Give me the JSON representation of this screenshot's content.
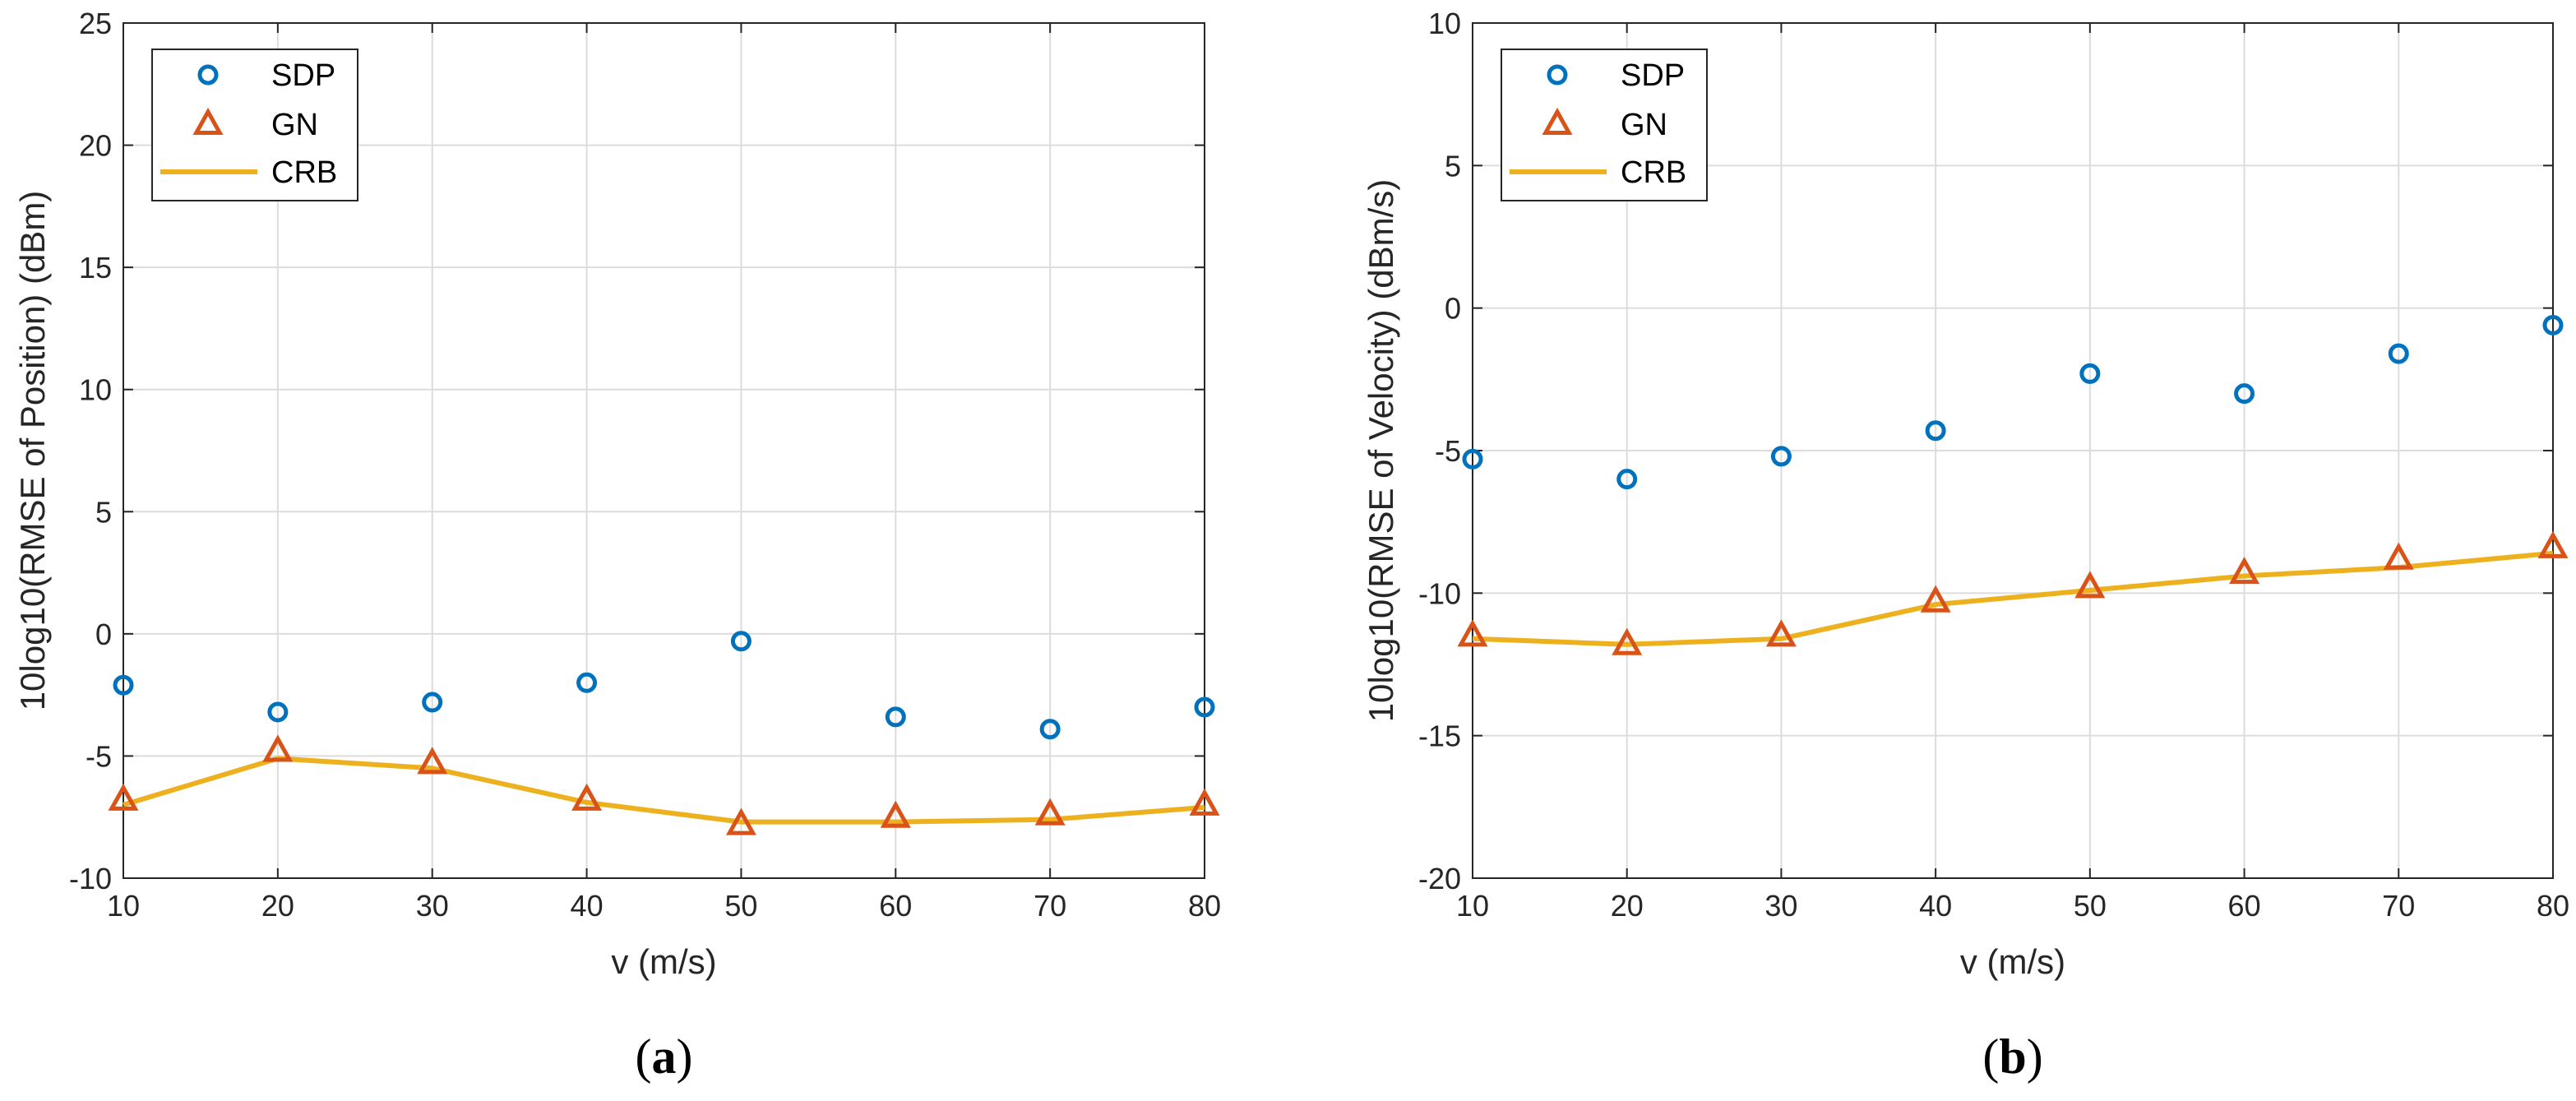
{
  "colors": {
    "sdp": "#0072BD",
    "gn": "#D95319",
    "crb": "#EDB120",
    "grid": "#dcdcdc",
    "axis": "#262626"
  },
  "chart_data": [
    {
      "type": "line",
      "panel": {
        "open": "(",
        "letter": "a",
        "close": ")"
      },
      "xlabel": "v (m/s)",
      "ylabel": "10log10(RMSE of Position) (dBm)",
      "xlim": [
        10,
        80
      ],
      "ylim": [
        -10,
        25
      ],
      "xticks": [
        10,
        20,
        30,
        40,
        50,
        60,
        70,
        80
      ],
      "yticks": [
        -10,
        -5,
        0,
        5,
        10,
        15,
        20,
        25
      ],
      "grid": true,
      "legend_position": "top-left",
      "x": [
        10,
        20,
        30,
        40,
        50,
        60,
        70,
        80
      ],
      "series": [
        {
          "name": "SDP",
          "style": "circle-markers",
          "values": [
            -2.1,
            -3.2,
            -2.8,
            -2.0,
            -0.3,
            -3.4,
            -3.9,
            -3.0
          ]
        },
        {
          "name": "GN",
          "style": "triangle-markers",
          "values": [
            -6.8,
            -4.8,
            -5.3,
            -6.8,
            -7.8,
            -7.5,
            -7.4,
            -7.0
          ]
        },
        {
          "name": "CRB",
          "style": "line",
          "values": [
            -7.0,
            -5.1,
            -5.5,
            -6.9,
            -7.7,
            -7.7,
            -7.6,
            -7.1
          ]
        }
      ]
    },
    {
      "type": "line",
      "panel": {
        "open": "(",
        "letter": "b",
        "close": ")"
      },
      "xlabel": "v (m/s)",
      "ylabel": "10log10(RMSE of Velocity) (dBm/s)",
      "xlim": [
        10,
        80
      ],
      "ylim": [
        -20,
        10
      ],
      "xticks": [
        10,
        20,
        30,
        40,
        50,
        60,
        70,
        80
      ],
      "yticks": [
        -20,
        -15,
        -10,
        -5,
        0,
        5,
        10
      ],
      "grid": true,
      "legend_position": "top-left",
      "x": [
        10,
        20,
        30,
        40,
        50,
        60,
        70,
        80
      ],
      "series": [
        {
          "name": "SDP",
          "style": "circle-markers",
          "values": [
            -5.3,
            -6.0,
            -5.2,
            -4.3,
            -2.3,
            -3.0,
            -1.6,
            -0.6
          ]
        },
        {
          "name": "GN",
          "style": "triangle-markers",
          "values": [
            -11.5,
            -11.8,
            -11.5,
            -10.3,
            -9.8,
            -9.3,
            -8.8,
            -8.4
          ]
        },
        {
          "name": "CRB",
          "style": "line",
          "values": [
            -11.6,
            -11.8,
            -11.6,
            -10.4,
            -9.9,
            -9.4,
            -9.1,
            -8.6
          ]
        }
      ]
    }
  ]
}
